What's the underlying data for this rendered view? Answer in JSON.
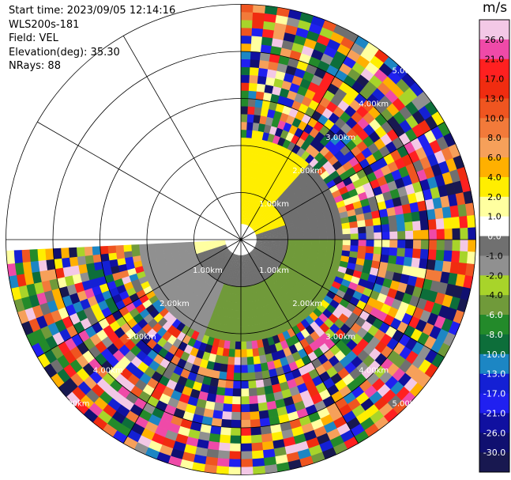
{
  "header": {
    "start_time": "Start time: 2023/09/05 12:14:16",
    "station": "WLS200s-181",
    "field": "Field: VEL",
    "elevation": "Elevation(deg): 35.30",
    "nrays": "NRays: 88"
  },
  "colorbar": {
    "unit": "m/s",
    "ticks": [
      "26.0",
      "21.0",
      "17.0",
      "13.0",
      "10.0",
      "8.0",
      "6.0",
      "4.0",
      "2.0",
      "1.0",
      "0.0",
      "-1.0",
      "-2.0",
      "-4.0",
      "-6.0",
      "-8.0",
      "-10.0",
      "-13.0",
      "-17.0",
      "-21.0",
      "-26.0",
      "-30.0"
    ],
    "colors": [
      "#f3c8e6",
      "#ef4aa8",
      "#ff2020",
      "#f02c10",
      "#ef5520",
      "#f27a3a",
      "#f6a05a",
      "#ffb000",
      "#ffee00",
      "#ffffa0",
      "#ffffff",
      "#707070",
      "#909090",
      "#a8d42a",
      "#709a3a",
      "#238a2a",
      "#0d6e3a",
      "#1c86c4",
      "#1420d4",
      "#2020f0",
      "#1010a0",
      "#101070",
      "#181850"
    ]
  },
  "chart_data": {
    "type": "ppi",
    "field": "VEL",
    "units": "m/s",
    "elevation_deg": 35.3,
    "n_rays": 88,
    "range_rings_km": [
      1.0,
      2.0,
      3.0,
      4.0,
      5.0
    ],
    "range_labels": [
      "1.00km",
      "2.00km",
      "3.00km",
      "4.00km",
      "5.00km"
    ],
    "azimuth_spokes_deg": [
      0,
      30,
      60,
      90,
      120,
      150,
      180,
      210,
      240,
      270,
      300,
      330
    ],
    "max_range_km": 5.0,
    "zones": [
      {
        "az_from": 0,
        "az_to": 70,
        "range_from": 0.0,
        "range_to": 1.0,
        "velocity": 2.0
      },
      {
        "az_from": 70,
        "az_to": 250,
        "range_from": 0.0,
        "range_to": 1.0,
        "velocity": -1.0
      },
      {
        "az_from": 250,
        "az_to": 280,
        "range_from": 0.0,
        "range_to": 1.0,
        "velocity": 1.0
      },
      {
        "az_from": 90,
        "az_to": 200,
        "range_from": 1.0,
        "range_to": 2.1,
        "velocity": -6.0
      },
      {
        "az_from": 200,
        "az_to": 265,
        "range_from": 1.0,
        "range_to": 2.1,
        "velocity": -2.0
      },
      {
        "az_from": 265,
        "az_to": 275,
        "range_from": 1.0,
        "range_to": 2.1,
        "velocity": -1.0
      },
      {
        "az_from": 0,
        "az_to": 40,
        "range_from": 1.0,
        "range_to": 2.1,
        "velocity": 2.0
      },
      {
        "az_from": 40,
        "az_to": 90,
        "range_from": 1.0,
        "range_to": 2.1,
        "velocity": -1.0
      }
    ],
    "coverage": {
      "az_from": 0,
      "az_to": 266
    }
  }
}
